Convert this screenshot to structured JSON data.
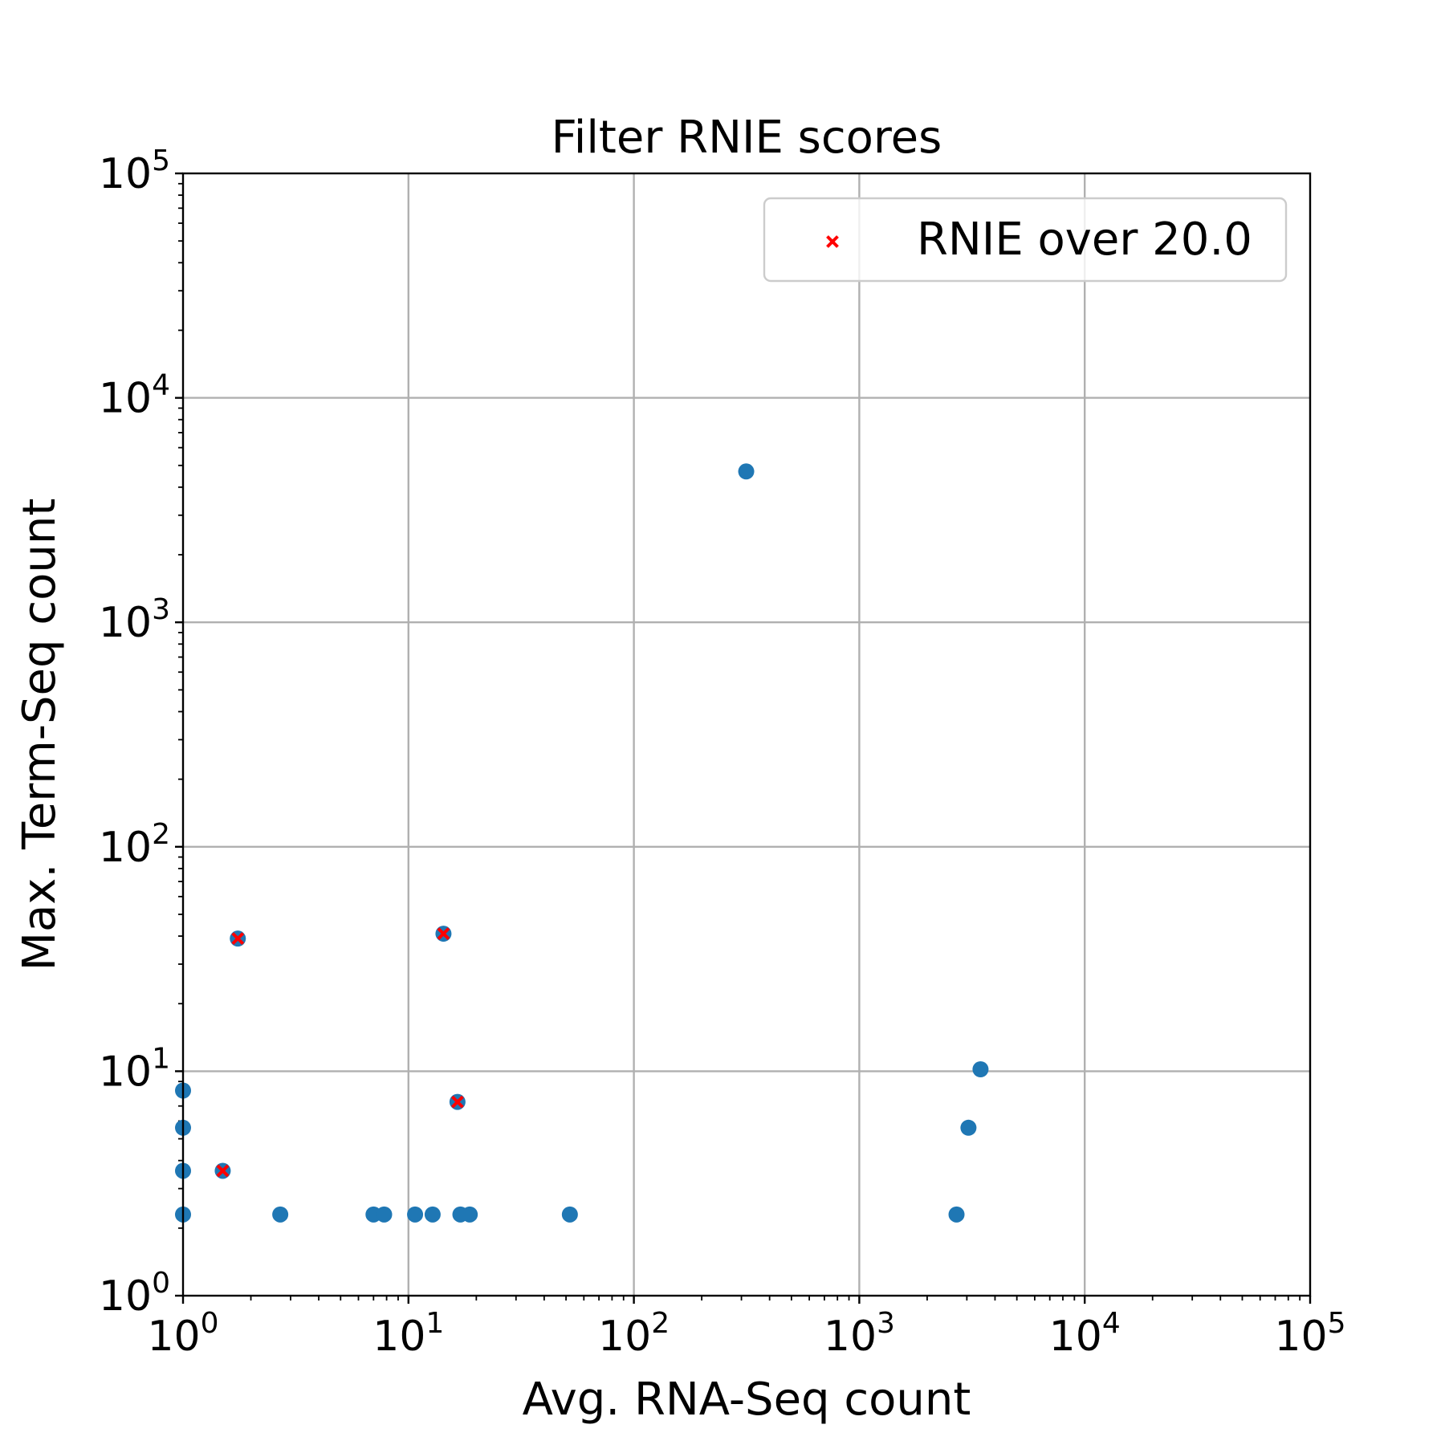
{
  "chart_data": {
    "type": "scatter",
    "title": "Filter RNIE scores",
    "xlabel": "Avg. RNA-Seq count",
    "ylabel": "Max. Term-Seq count",
    "xscale": "log",
    "yscale": "log",
    "xlim": [
      1,
      100000
    ],
    "ylim": [
      1,
      100000
    ],
    "grid": true,
    "legend_placement": "top-right",
    "x_ticks": [
      {
        "base": "10",
        "exp": "0"
      },
      {
        "base": "10",
        "exp": "1"
      },
      {
        "base": "10",
        "exp": "2"
      },
      {
        "base": "10",
        "exp": "3"
      },
      {
        "base": "10",
        "exp": "4"
      },
      {
        "base": "10",
        "exp": "5"
      }
    ],
    "y_ticks": [
      {
        "base": "10",
        "exp": "0"
      },
      {
        "base": "10",
        "exp": "1"
      },
      {
        "base": "10",
        "exp": "2"
      },
      {
        "base": "10",
        "exp": "3"
      },
      {
        "base": "10",
        "exp": "4"
      },
      {
        "base": "10",
        "exp": "5"
      }
    ],
    "series": [
      {
        "marker": "circle",
        "color": "#1f77b4",
        "points": [
          {
            "x": 1.0,
            "y": 2.3
          },
          {
            "x": 1.0,
            "y": 3.6
          },
          {
            "x": 1.0,
            "y": 5.6
          },
          {
            "x": 1.0,
            "y": 8.2
          },
          {
            "x": 1.5,
            "y": 3.6
          },
          {
            "x": 1.75,
            "y": 39
          },
          {
            "x": 2.7,
            "y": 2.3
          },
          {
            "x": 7.0,
            "y": 2.3
          },
          {
            "x": 7.8,
            "y": 2.3
          },
          {
            "x": 10.7,
            "y": 2.3
          },
          {
            "x": 12.8,
            "y": 2.3
          },
          {
            "x": 14.3,
            "y": 41
          },
          {
            "x": 16.5,
            "y": 7.3
          },
          {
            "x": 17.0,
            "y": 2.3
          },
          {
            "x": 18.7,
            "y": 2.3
          },
          {
            "x": 52,
            "y": 2.3
          },
          {
            "x": 315,
            "y": 4700
          },
          {
            "x": 2700,
            "y": 2.3
          },
          {
            "x": 3050,
            "y": 5.6
          },
          {
            "x": 3450,
            "y": 10.2
          }
        ]
      },
      {
        "name": "RNIE over 20.0",
        "marker": "x",
        "color": "#ff0000",
        "points": [
          {
            "x": 1.5,
            "y": 3.6
          },
          {
            "x": 1.75,
            "y": 39
          },
          {
            "x": 14.3,
            "y": 41
          },
          {
            "x": 16.5,
            "y": 7.3
          }
        ]
      }
    ]
  }
}
